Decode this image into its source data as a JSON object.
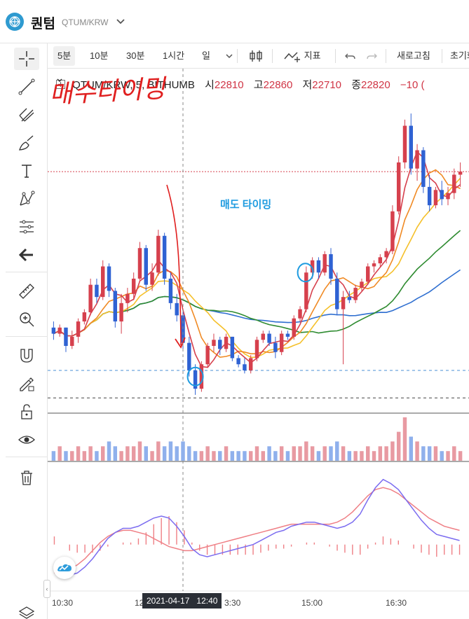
{
  "header": {
    "coin_name": "퀀텀",
    "pair": "QTUM/KRW"
  },
  "toolbar": {
    "intervals": [
      "5분",
      "10분",
      "30분",
      "1시간",
      "일"
    ],
    "active_interval": "5분",
    "indicator_label": "지표",
    "refresh_label": "새로고침",
    "reset_label": "초기화"
  },
  "legend": {
    "symbol": "QTUM/KRW, 5, BITHUMB",
    "open_label": "시",
    "open": "22810",
    "high_label": "고",
    "high": "22860",
    "low_label": "저",
    "low": "22710",
    "close_label": "종",
    "close": "22820",
    "change": "−10 ("
  },
  "annotations": {
    "buy_timing": "매수타이밍",
    "sell_timing": "매도 타이밍"
  },
  "crosshair": {
    "date": "2021-04-17",
    "time": "12:40"
  },
  "colors": {
    "up": "#d6404d",
    "down": "#2f62d3",
    "ma5": "#d6404d",
    "ma10": "#f08a24",
    "ma20": "#f5c02a",
    "ma60": "#2e8b30",
    "ma120": "#2f6fd0",
    "macd": "#7b6cf0",
    "signal": "#ef7f85",
    "annotation_buy": "#e02020",
    "annotation_sell": "#1e9be0"
  },
  "chart_data": {
    "type": "candlestick",
    "x_labels": [
      "10:30",
      "12",
      "3:30",
      "15:00",
      "16:30"
    ],
    "candles": [
      [
        100,
        102,
        96,
        98
      ],
      [
        98,
        101,
        97,
        100
      ],
      [
        100,
        100,
        92,
        94
      ],
      [
        94,
        99,
        93,
        97
      ],
      [
        97,
        103,
        95,
        102
      ],
      [
        102,
        106,
        101,
        105
      ],
      [
        105,
        116,
        104,
        114
      ],
      [
        114,
        116,
        108,
        110
      ],
      [
        110,
        122,
        109,
        120
      ],
      [
        120,
        121,
        110,
        112
      ],
      [
        112,
        113,
        100,
        102
      ],
      [
        102,
        111,
        98,
        108
      ],
      [
        108,
        113,
        105,
        111
      ],
      [
        111,
        118,
        109,
        116
      ],
      [
        116,
        128,
        115,
        126
      ],
      [
        126,
        127,
        112,
        114
      ],
      [
        114,
        121,
        112,
        118
      ],
      [
        118,
        132,
        117,
        130
      ],
      [
        130,
        131,
        114,
        116
      ],
      [
        116,
        118,
        106,
        108
      ],
      [
        108,
        111,
        102,
        104
      ],
      [
        104,
        105,
        93,
        95
      ],
      [
        95,
        97,
        84,
        86
      ],
      [
        86,
        88,
        78,
        80
      ],
      [
        80,
        89,
        79,
        88
      ],
      [
        88,
        95,
        87,
        94
      ],
      [
        94,
        98,
        92,
        96
      ],
      [
        96,
        97,
        91,
        93
      ],
      [
        93,
        98,
        92,
        97
      ],
      [
        97,
        97,
        89,
        90
      ],
      [
        90,
        91,
        87,
        88
      ],
      [
        88,
        90,
        85,
        86
      ],
      [
        86,
        91,
        85,
        90
      ],
      [
        90,
        97,
        89,
        96
      ],
      [
        96,
        99,
        95,
        98
      ],
      [
        98,
        99,
        94,
        95
      ],
      [
        95,
        97,
        90,
        92
      ],
      [
        92,
        99,
        91,
        98
      ],
      [
        98,
        99,
        96,
        97
      ],
      [
        97,
        104,
        96,
        103
      ],
      [
        103,
        107,
        102,
        106
      ],
      [
        106,
        120,
        105,
        118
      ],
      [
        118,
        123,
        116,
        122
      ],
      [
        122,
        123,
        116,
        118
      ],
      [
        118,
        125,
        117,
        124
      ],
      [
        124,
        126,
        114,
        116
      ],
      [
        116,
        118,
        104,
        106
      ],
      [
        106,
        112,
        88,
        110
      ],
      [
        110,
        112,
        108,
        109
      ],
      [
        109,
        114,
        108,
        113
      ],
      [
        113,
        116,
        112,
        115
      ],
      [
        115,
        121,
        114,
        120
      ],
      [
        120,
        122,
        118,
        121
      ],
      [
        121,
        124,
        120,
        123
      ],
      [
        123,
        126,
        121,
        125
      ],
      [
        125,
        140,
        124,
        138
      ],
      [
        138,
        156,
        137,
        154
      ],
      [
        154,
        168,
        152,
        166
      ],
      [
        166,
        170,
        150,
        152
      ],
      [
        152,
        160,
        148,
        158
      ],
      [
        158,
        159,
        144,
        146
      ],
      [
        146,
        150,
        138,
        140
      ],
      [
        140,
        146,
        139,
        145
      ],
      [
        145,
        148,
        140,
        142
      ],
      [
        142,
        146,
        140,
        144
      ],
      [
        144,
        152,
        142,
        150
      ],
      [
        150,
        154,
        146,
        151
      ]
    ],
    "volumes": [
      2,
      3,
      2,
      2,
      3,
      2,
      3,
      2,
      3,
      4,
      3,
      2,
      3,
      3,
      4,
      3,
      2,
      4,
      3,
      4,
      3,
      4,
      3,
      2,
      2,
      3,
      2,
      2,
      3,
      2,
      2,
      2,
      2,
      3,
      2,
      3,
      2,
      3,
      2,
      3,
      3,
      4,
      3,
      2,
      3,
      3,
      4,
      3,
      2,
      2,
      2,
      3,
      2,
      3,
      3,
      4,
      6,
      9,
      5,
      4,
      3,
      3,
      3,
      2,
      2,
      3,
      2
    ],
    "macd": [
      -10,
      -13,
      -15,
      -14,
      -11,
      -7,
      -2,
      3,
      6,
      8,
      8,
      9,
      11,
      13,
      14,
      13,
      9,
      4,
      -2,
      -5,
      -6,
      -5,
      -4,
      -3,
      -2,
      -1,
      0,
      2,
      4,
      6,
      7,
      9,
      10,
      11,
      11,
      10,
      9,
      8,
      9,
      11,
      15,
      22,
      28,
      32,
      30,
      27,
      22,
      17,
      12,
      8,
      5,
      4,
      3,
      2
    ],
    "signal": [
      -14,
      -13,
      -12,
      -10,
      -7,
      -3,
      1,
      4,
      6,
      7,
      7,
      6,
      5,
      3,
      1,
      -1,
      -2,
      -3,
      -3,
      -2,
      -1,
      0,
      1,
      2,
      3,
      4,
      5,
      6,
      7,
      8,
      9,
      10,
      10,
      10,
      10,
      10,
      10,
      11,
      13,
      16,
      20,
      24,
      27,
      28,
      27,
      25,
      22,
      19,
      16,
      13,
      11,
      9,
      8,
      7
    ]
  }
}
